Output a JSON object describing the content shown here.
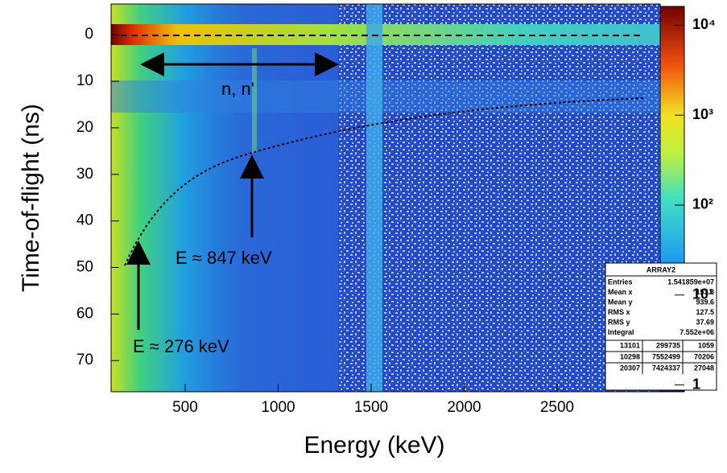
{
  "chart_data": {
    "type": "heatmap",
    "x_label": "Energy (keV)",
    "y_label": "Time-of-flight (ns)",
    "xlim": [
      102,
      3054
    ],
    "xticks": [
      500,
      1000,
      1500,
      2000,
      2500
    ],
    "ylim": [
      -6.6,
      76.7
    ],
    "y_inverted": true,
    "yticks": [
      0,
      10,
      20,
      30,
      40,
      50,
      60,
      70
    ],
    "colorbar": {
      "log": true,
      "zlim": [
        0.84,
        16200
      ],
      "ticks": [
        1,
        {
          "value": 10,
          "label": "10¹"
        },
        {
          "value": 100,
          "label": "10²"
        },
        {
          "value": 1000,
          "label": "10³"
        },
        {
          "value": 10000,
          "label": "10⁴"
        }
      ]
    },
    "annotations": [
      "n, n'",
      "E ≈ 847 keV",
      "E ≈ 276 keV"
    ],
    "stats": {
      "title": "ARRAY2",
      "rows": [
        [
          "Entries",
          "1.541859e+07"
        ],
        [
          "Mean x",
          "153.3"
        ],
        [
          "Mean y",
          "939.6"
        ],
        [
          "RMS x",
          "127.5"
        ],
        [
          "RMS y",
          "37.69"
        ],
        [
          "Integral",
          "7.552e+06"
        ]
      ],
      "grid": [
        [
          13101,
          299735,
          1059
        ],
        [
          10298,
          7552499,
          70206
        ],
        [
          20307,
          7424337,
          27048
        ]
      ]
    }
  }
}
